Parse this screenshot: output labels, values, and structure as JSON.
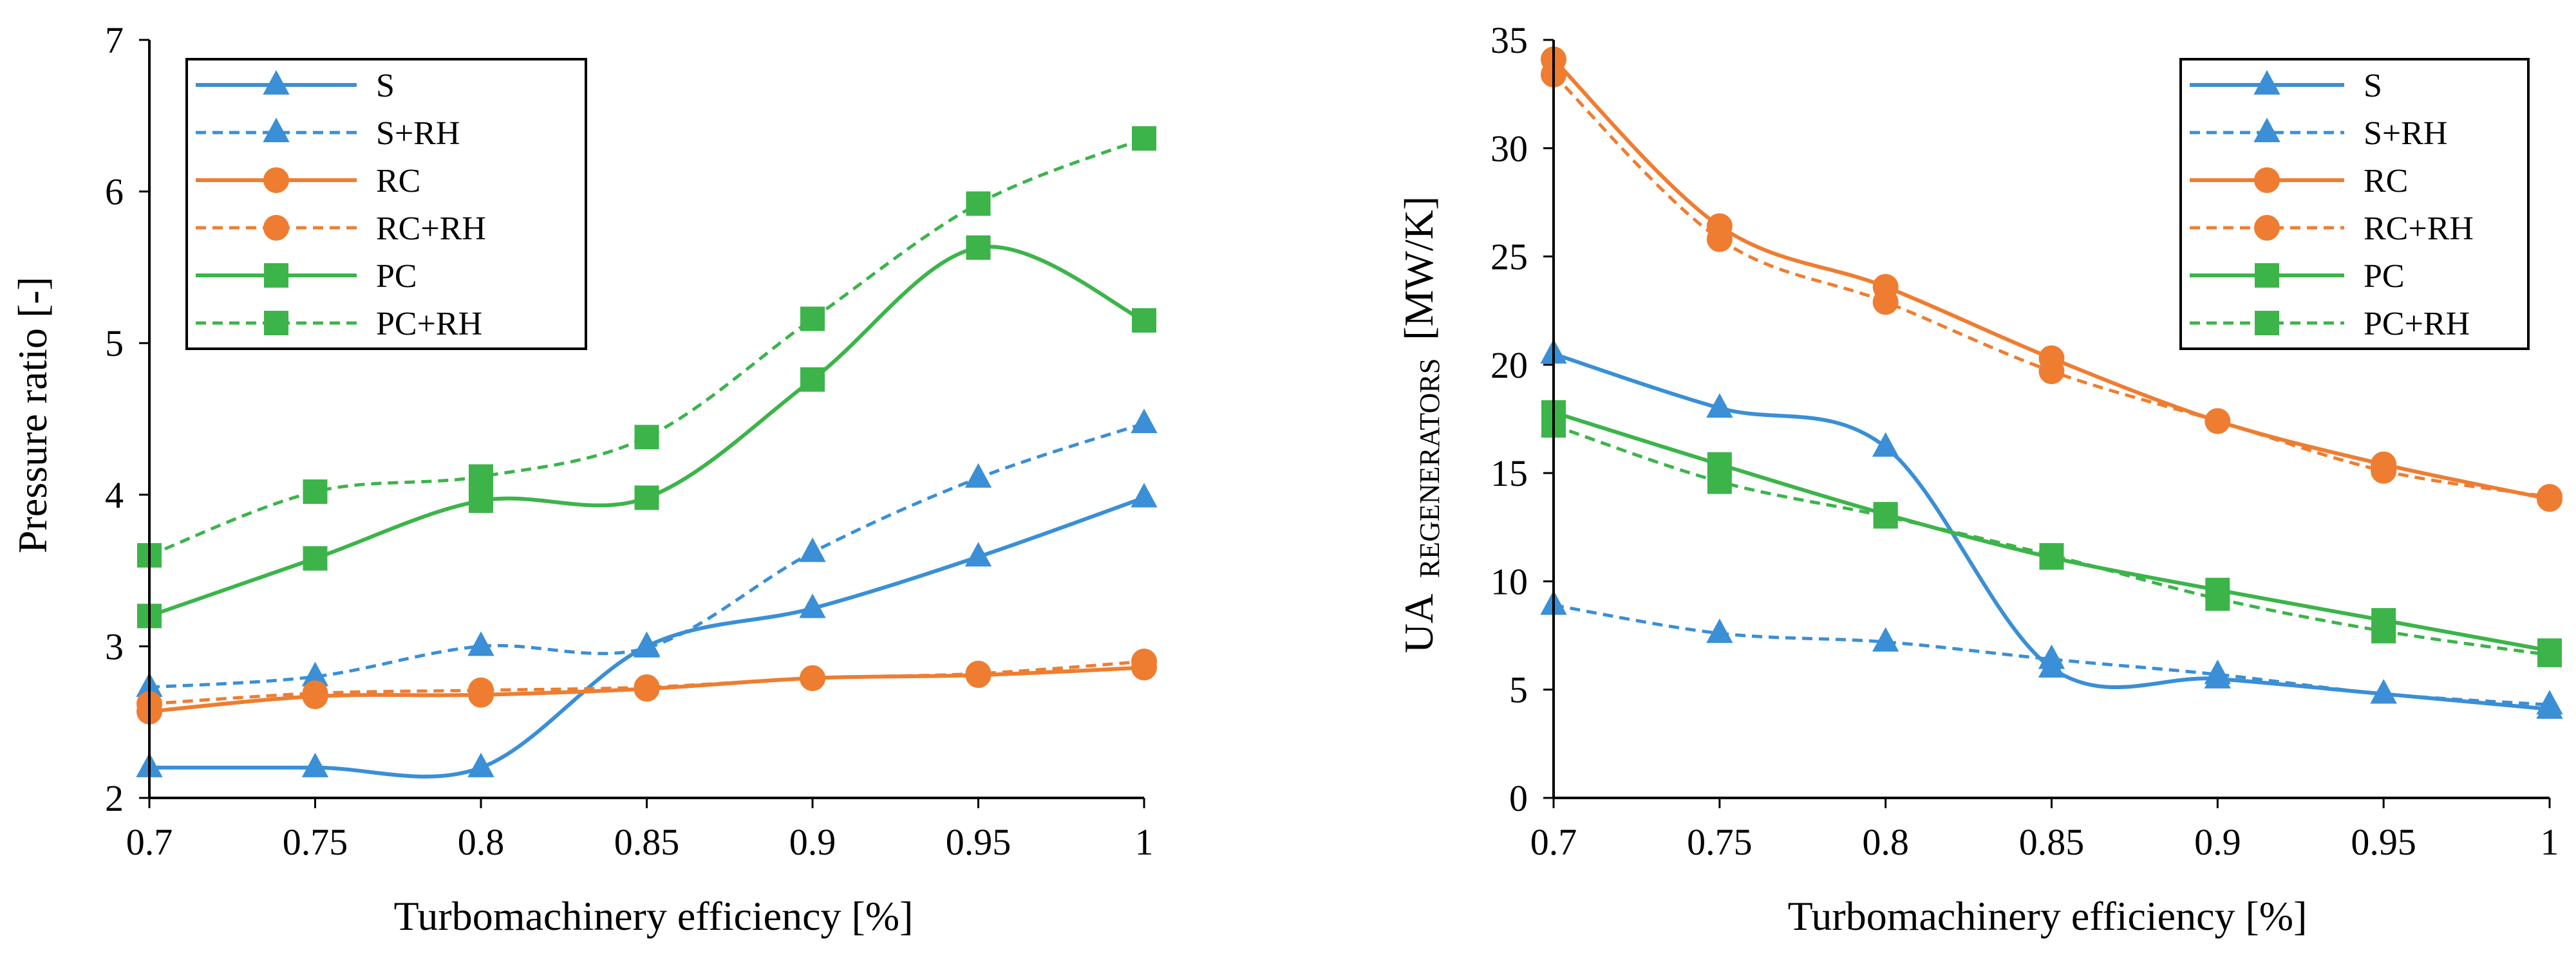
{
  "colors": {
    "S": "#3a8fd6",
    "RC": "#ee7d31",
    "PC": "#3cb44a",
    "axis": "#000000"
  },
  "chart_data": [
    {
      "type": "line",
      "xlabel": "Turbomachinery efficiency [%]",
      "ylabel": "Pressure ratio [-]",
      "xlim": [
        0.7,
        1
      ],
      "ylim": [
        2,
        7
      ],
      "x": [
        0.7,
        0.75,
        0.8,
        0.85,
        0.9,
        0.95,
        1
      ],
      "xticks": [
        "0.7",
        "0.75",
        "0.8",
        "0.85",
        "0.9",
        "0.95",
        "1"
      ],
      "yticks": [
        "2",
        "3",
        "4",
        "5",
        "6",
        "7"
      ],
      "legend_position": "top-left",
      "series": [
        {
          "name": "S",
          "color_key": "S",
          "dash": false,
          "marker": "triangle",
          "values": [
            2.2,
            2.2,
            2.2,
            3.0,
            3.25,
            3.59,
            3.98
          ]
        },
        {
          "name": "S+RH",
          "color_key": "S",
          "dash": true,
          "marker": "triangle",
          "values": [
            2.73,
            2.8,
            3.0,
            2.99,
            3.62,
            4.11,
            4.47
          ]
        },
        {
          "name": "RC",
          "color_key": "RC",
          "dash": false,
          "marker": "circle",
          "values": [
            2.57,
            2.67,
            2.68,
            2.72,
            2.79,
            2.81,
            2.86
          ]
        },
        {
          "name": "RC+RH",
          "color_key": "RC",
          "dash": true,
          "marker": "circle",
          "values": [
            2.62,
            2.69,
            2.71,
            2.73,
            2.79,
            2.82,
            2.9
          ]
        },
        {
          "name": "PC",
          "color_key": "PC",
          "dash": false,
          "marker": "square",
          "values": [
            3.2,
            3.58,
            3.96,
            3.98,
            4.76,
            5.63,
            5.15
          ]
        },
        {
          "name": "PC+RH",
          "color_key": "PC",
          "dash": true,
          "marker": "square",
          "values": [
            3.6,
            4.02,
            4.12,
            4.38,
            5.16,
            5.92,
            6.35
          ]
        }
      ]
    },
    {
      "type": "line",
      "xlabel": "Turbomachinery efficiency [%]",
      "ylabel": "UA",
      "ylabel_subscript": "REGENERATORS",
      "ylabel_unit": "[MW/K]",
      "xlim": [
        0.7,
        1
      ],
      "ylim": [
        0,
        35
      ],
      "x": [
        0.7,
        0.75,
        0.8,
        0.85,
        0.9,
        0.95,
        1
      ],
      "xticks": [
        "0.7",
        "0.75",
        "0.8",
        "0.85",
        "0.9",
        "0.95",
        "1"
      ],
      "yticks": [
        "0",
        "5",
        "10",
        "15",
        "20",
        "25",
        "30",
        "35"
      ],
      "legend_position": "top-right",
      "series": [
        {
          "name": "S",
          "color_key": "S",
          "dash": false,
          "marker": "triangle",
          "values": [
            20.5,
            18.0,
            16.2,
            6.0,
            5.5,
            4.8,
            4.1
          ]
        },
        {
          "name": "S+RH",
          "color_key": "S",
          "dash": true,
          "marker": "triangle",
          "values": [
            8.9,
            7.6,
            7.2,
            6.4,
            5.7,
            4.8,
            4.3
          ]
        },
        {
          "name": "RC",
          "color_key": "RC",
          "dash": false,
          "marker": "circle",
          "values": [
            34.1,
            26.4,
            23.6,
            20.3,
            17.4,
            15.4,
            13.8
          ]
        },
        {
          "name": "RC+RH",
          "color_key": "RC",
          "dash": true,
          "marker": "circle",
          "values": [
            33.4,
            25.8,
            22.9,
            19.7,
            17.4,
            15.1,
            13.9
          ]
        },
        {
          "name": "PC",
          "color_key": "PC",
          "dash": false,
          "marker": "square",
          "values": [
            17.8,
            15.4,
            13.1,
            11.1,
            9.6,
            8.2,
            6.8
          ]
        },
        {
          "name": "PC+RH",
          "color_key": "PC",
          "dash": true,
          "marker": "square",
          "values": [
            17.2,
            14.6,
            13.0,
            11.2,
            9.2,
            7.7,
            6.6
          ]
        }
      ]
    }
  ]
}
